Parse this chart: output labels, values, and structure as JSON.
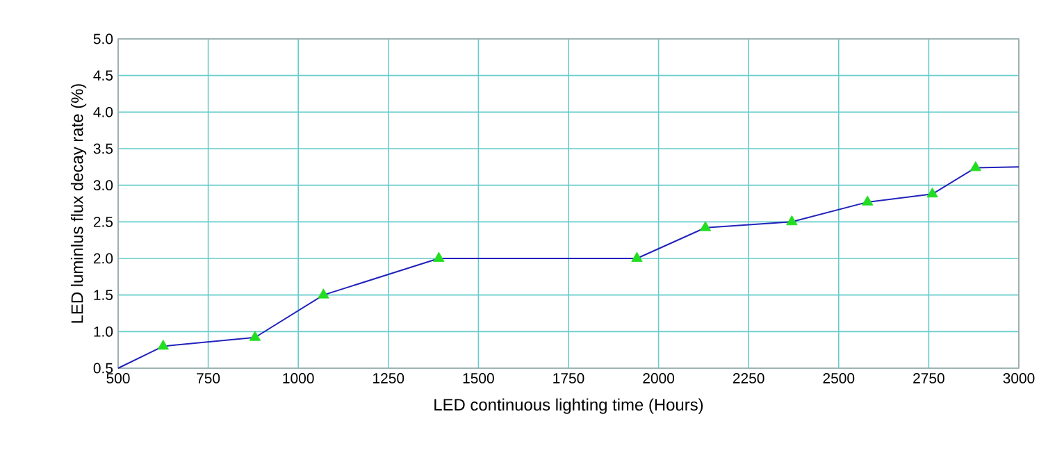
{
  "chart_data": {
    "type": "line",
    "xlabel": "LED continuous lighting time (Hours)",
    "ylabel": "LED luminlus flux decay rate (%)",
    "xlim": [
      500,
      3000
    ],
    "ylim": [
      0.5,
      5.0
    ],
    "xticks": [
      500,
      750,
      1000,
      1250,
      1500,
      1750,
      2000,
      2250,
      2500,
      2750,
      3000
    ],
    "yticks": [
      0.5,
      {
        "value": 1,
        "label": "1.0"
      },
      1.5,
      {
        "value": 2,
        "label": "2.0"
      },
      2.5,
      {
        "value": 3,
        "label": "3.0"
      },
      3.5,
      {
        "value": 4,
        "label": "4.0"
      },
      4.5,
      {
        "value": 5,
        "label": "5.0"
      }
    ],
    "grid": true,
    "series": [
      {
        "color": "#2222bb",
        "marker": "none",
        "x": [
          500,
          625,
          880,
          1070,
          1390,
          1940,
          2130,
          2370,
          2580,
          2760,
          2880,
          3000
        ],
        "values": [
          0.5,
          0.8,
          0.92,
          1.5,
          2.0,
          2.0,
          2.42,
          2.5,
          2.77,
          2.88,
          3.24,
          3.25
        ]
      },
      {
        "type": "scatter",
        "color": "#22dd22",
        "marker": "triangle",
        "x": [
          625,
          880,
          1070,
          1390,
          1940,
          2130,
          2370,
          2580,
          2760,
          2880
        ],
        "values": [
          0.8,
          0.92,
          1.5,
          2.0,
          2.0,
          2.42,
          2.5,
          2.77,
          2.88,
          3.24
        ]
      }
    ]
  }
}
